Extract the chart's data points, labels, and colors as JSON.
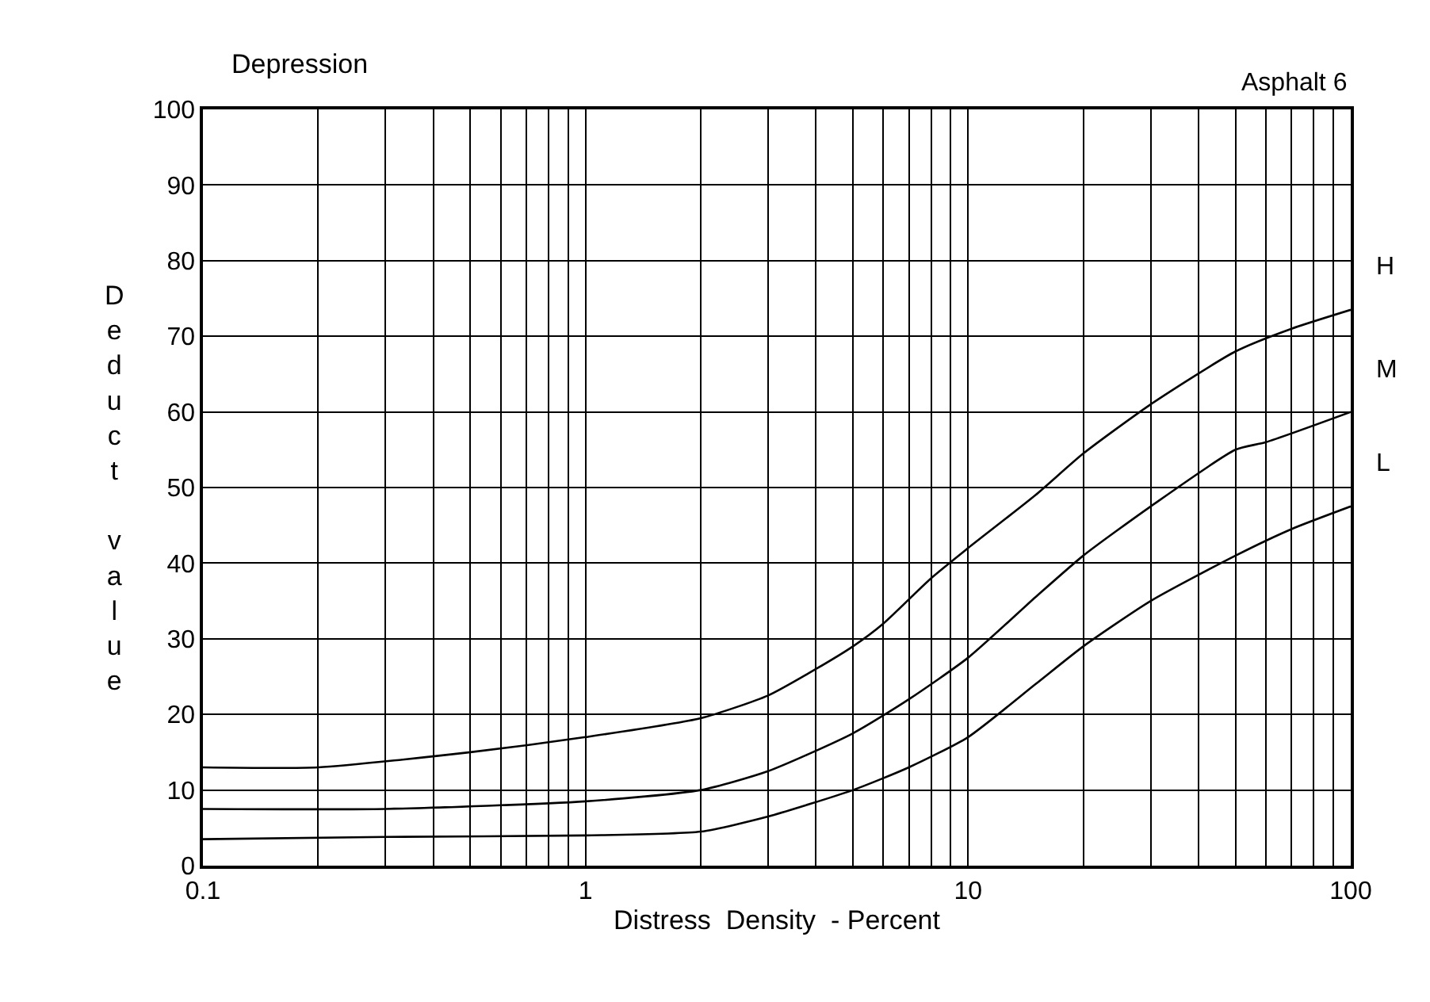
{
  "chart_data": {
    "type": "line",
    "title": "Depression",
    "annotations": [
      "Asphalt 6"
    ],
    "xlabel": "Distress  Density  - Percent",
    "ylabel": "Deduct value",
    "log": "x",
    "xlim": [
      0.1,
      100
    ],
    "xticks": [
      0.1,
      1,
      10,
      100
    ],
    "ylim": [
      0,
      100
    ],
    "yticks": [
      0,
      10,
      20,
      30,
      40,
      50,
      60,
      70,
      80,
      90,
      100
    ],
    "grid": true,
    "legend": false,
    "marker": "none",
    "line_style": "solid",
    "series": [
      {
        "name": "H",
        "color": "#000000",
        "x": [
          0.1,
          0.2,
          0.5,
          1,
          2,
          3,
          4,
          5,
          6,
          8,
          10,
          15,
          20,
          30,
          50,
          70,
          100
        ],
        "values": [
          13,
          13,
          15,
          17,
          19.5,
          22.5,
          26,
          29,
          32,
          38,
          42,
          49,
          54.5,
          61,
          68,
          71,
          73.5
        ]
      },
      {
        "name": "M",
        "color": "#000000",
        "x": [
          0.1,
          0.3,
          1,
          2,
          3,
          5,
          7,
          10,
          15,
          20,
          30,
          50,
          60,
          100
        ],
        "values": [
          7.5,
          7.5,
          8.5,
          10,
          12.5,
          17.5,
          22,
          27.5,
          35.5,
          41,
          47.5,
          55,
          56,
          60
        ]
      },
      {
        "name": "L",
        "color": "#000000",
        "x": [
          0.1,
          0.3,
          1,
          2,
          3,
          5,
          7,
          10,
          15,
          20,
          30,
          50,
          70,
          100
        ],
        "values": [
          3.5,
          3.8,
          4,
          4.5,
          6.5,
          10,
          13,
          17,
          24,
          29,
          35,
          41,
          44.5,
          47.5
        ]
      }
    ]
  }
}
